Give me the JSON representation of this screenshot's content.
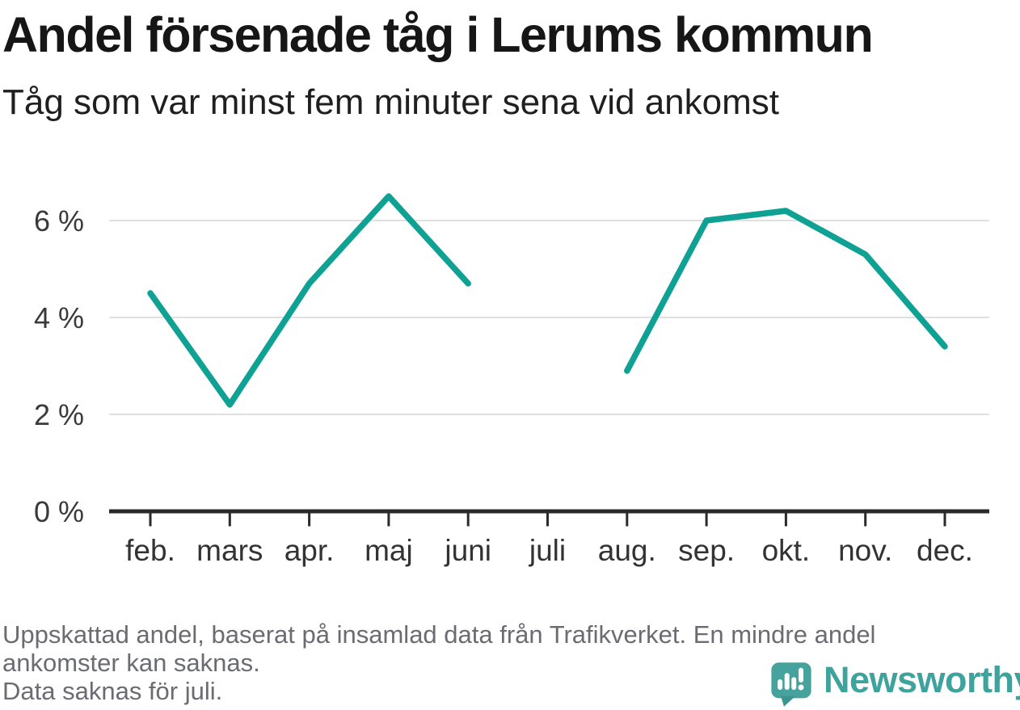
{
  "header": {
    "title": "Andel försenade tåg i Lerums kommun",
    "subtitle": "Tåg som var minst fem minuter sena vid ankomst"
  },
  "chart_data": {
    "type": "line",
    "title": "Andel försenade tåg i Lerums kommun",
    "categories": [
      "feb.",
      "mars",
      "apr.",
      "maj",
      "juni",
      "juli",
      "aug.",
      "sep.",
      "okt.",
      "nov.",
      "dec."
    ],
    "values": [
      4.5,
      2.2,
      4.7,
      6.5,
      4.7,
      null,
      2.9,
      6.0,
      6.2,
      5.3,
      3.4
    ],
    "unit": "%",
    "ylim": [
      0,
      7
    ],
    "yticks": [
      0,
      2,
      4,
      6
    ],
    "ytick_labels": [
      "0 %",
      "2 %",
      "4 %",
      "6 %"
    ],
    "grid": "horizontal",
    "legend": "none",
    "gap_note": "Data saknas för juli."
  },
  "colors": {
    "line": "#0fa294",
    "grid": "#e0e0e0",
    "axis": "#2a2a2a",
    "logo_teal": "#3fa39d"
  },
  "footer": {
    "lines": [
      "Uppskattad andel, baserat på insamlad data från Trafikverket. En mindre andel",
      "ankomster kan saknas.",
      "Data saknas för juli."
    ]
  },
  "logo": {
    "text": "Newsworthy",
    "icon": "newsworthy-speech-bubble-bar-chart-icon"
  }
}
